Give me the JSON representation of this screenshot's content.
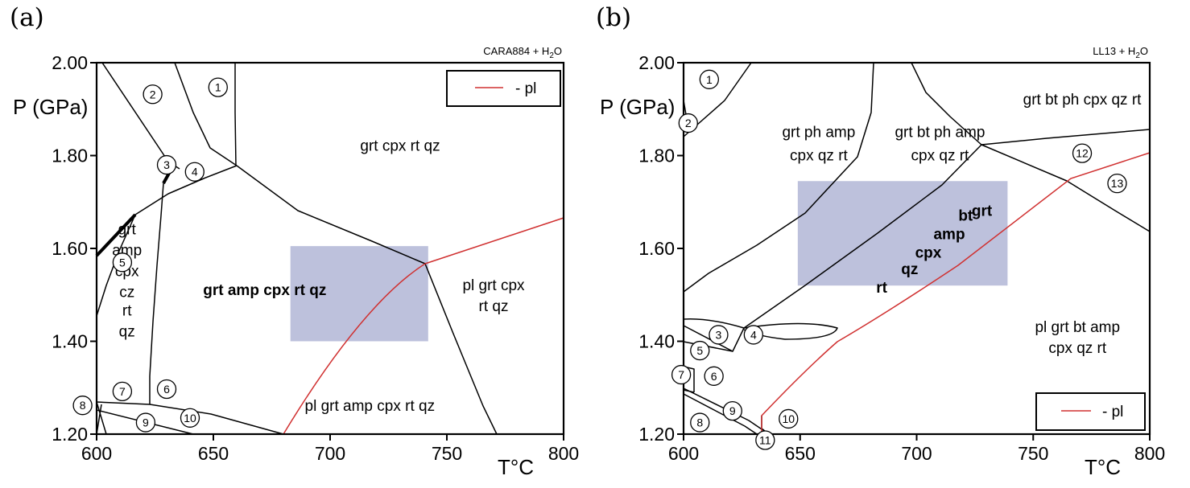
{
  "chart_data": [
    {
      "type": "phase-diagram",
      "panel_label": "(a)",
      "sample_label": "CARA884 + H2O",
      "xlabel": "T°C",
      "ylabel": "P (GPa)",
      "xlim": [
        600,
        800
      ],
      "ylim": [
        1.2,
        2.0
      ],
      "x_ticks": [
        "600",
        "650",
        "700",
        "750",
        "800"
      ],
      "y_ticks": [
        "1.20",
        "1.40",
        "1.60",
        "1.80",
        "2.00"
      ],
      "legend": {
        "label": "- pl",
        "color": "#d03030",
        "placement": "top-right"
      },
      "highlight_box": {
        "T": [
          683,
          742
        ],
        "P": [
          1.4,
          1.605
        ],
        "color": "#b6bad8"
      },
      "fields": [
        {
          "text": "grt cpx rt qz",
          "T": 730,
          "P": 1.81
        },
        {
          "text": "grt amp cpx rt qz",
          "T": 672,
          "P": 1.5,
          "bold": true
        },
        {
          "text": "pl grt cpx",
          "T": 770,
          "P": 1.51
        },
        {
          "text": "rt qz",
          "T": 770,
          "P": 1.465
        },
        {
          "text": "pl grt amp cpx rt qz",
          "T": 717,
          "P": 1.25
        },
        {
          "text": "grt",
          "T": 613,
          "P": 1.63
        },
        {
          "text": "amp",
          "T": 613,
          "P": 1.585
        },
        {
          "text": "cpx",
          "T": 613,
          "P": 1.54
        },
        {
          "text": "cz",
          "T": 613,
          "P": 1.495
        },
        {
          "text": "rt",
          "T": 613,
          "P": 1.455
        },
        {
          "text": "qz",
          "T": 613,
          "P": 1.41
        }
      ],
      "numbered_fields": [
        {
          "n": "1",
          "T": 652,
          "P": 1.947
        },
        {
          "n": "2",
          "T": 624,
          "P": 1.932
        },
        {
          "n": "3",
          "T": 630,
          "P": 1.78
        },
        {
          "n": "4",
          "T": 642,
          "P": 1.765
        },
        {
          "n": "5",
          "T": 611,
          "P": 1.57
        },
        {
          "n": "6",
          "T": 630,
          "P": 1.297
        },
        {
          "n": "7",
          "T": 611,
          "P": 1.292
        },
        {
          "n": "8",
          "T": 594,
          "P": 1.262
        },
        {
          "n": "9",
          "T": 621,
          "P": 1.225
        },
        {
          "n": "10",
          "T": 640,
          "P": 1.235
        }
      ]
    },
    {
      "type": "phase-diagram",
      "panel_label": "(b)",
      "sample_label": "LL13 + H2O",
      "xlabel": "T°C",
      "ylabel": "P (GPa)",
      "xlim": [
        600,
        800
      ],
      "ylim": [
        1.2,
        2.0
      ],
      "x_ticks": [
        "600",
        "650",
        "700",
        "750",
        "800"
      ],
      "y_ticks": [
        "1.20",
        "1.40",
        "1.60",
        "1.80",
        "2.00"
      ],
      "legend": {
        "label": "- pl",
        "color": "#d03030",
        "placement": "bottom-right"
      },
      "highlight_box": {
        "T": [
          649,
          739
        ],
        "P": [
          1.52,
          1.745
        ],
        "color": "#b6bad8"
      },
      "fields": [
        {
          "text": "grt ph amp",
          "T": 658,
          "P": 1.84
        },
        {
          "text": "cpx qz rt",
          "T": 658,
          "P": 1.79
        },
        {
          "text": "grt bt ph amp",
          "T": 710,
          "P": 1.84
        },
        {
          "text": "cpx qz rt",
          "T": 710,
          "P": 1.79
        },
        {
          "text": "grt bt ph cpx qz rt",
          "T": 771,
          "P": 1.91
        },
        {
          "text": "pl grt bt amp",
          "T": 769,
          "P": 1.42
        },
        {
          "text": "cpx qz rt",
          "T": 769,
          "P": 1.375
        },
        {
          "text": "grt",
          "T": 728,
          "P": 1.67,
          "bold": true
        },
        {
          "text": "bt",
          "T": 721,
          "P": 1.66,
          "bold": true
        },
        {
          "text": "amp",
          "T": 714,
          "P": 1.62,
          "bold": true
        },
        {
          "text": "cpx",
          "T": 705,
          "P": 1.58,
          "bold": true
        },
        {
          "text": "qz",
          "T": 697,
          "P": 1.545,
          "bold": true
        },
        {
          "text": "rt",
          "T": 685,
          "P": 1.505,
          "bold": true
        }
      ],
      "numbered_fields": [
        {
          "n": "1",
          "T": 611,
          "P": 1.964
        },
        {
          "n": "2",
          "T": 602,
          "P": 1.87
        },
        {
          "n": "3",
          "T": 615,
          "P": 1.414
        },
        {
          "n": "4",
          "T": 630,
          "P": 1.414
        },
        {
          "n": "5",
          "T": 607,
          "P": 1.38
        },
        {
          "n": "6",
          "T": 613,
          "P": 1.325
        },
        {
          "n": "7",
          "T": 599,
          "P": 1.328
        },
        {
          "n": "8",
          "T": 607,
          "P": 1.225
        },
        {
          "n": "9",
          "T": 621,
          "P": 1.25
        },
        {
          "n": "10",
          "T": 645,
          "P": 1.233
        },
        {
          "n": "11",
          "T": 635,
          "P": 1.187
        },
        {
          "n": "12",
          "T": 771,
          "P": 1.805
        },
        {
          "n": "13",
          "T": 786,
          "P": 1.74
        }
      ]
    }
  ]
}
